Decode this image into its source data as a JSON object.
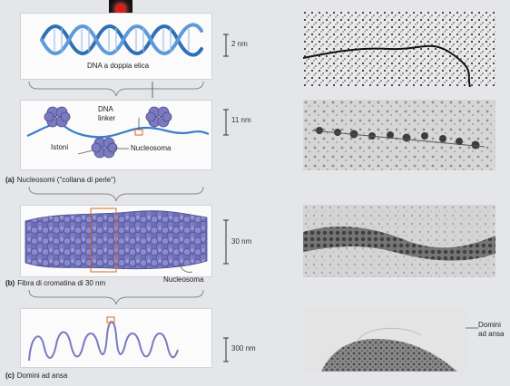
{
  "diagram": {
    "dna_label": "DNA a doppia elica",
    "dna_scale": "2 nm",
    "linker_label_1": "DNA",
    "linker_label_2": "linker",
    "histones_label": "Istoni",
    "nucleosome_label": "Nucleosoma",
    "nucleosome_scale": "11 nm",
    "panel_a_letter": "(a)",
    "panel_a_caption": "Nucleosomi (\"collana di perle\")",
    "fiber_scale": "30 nm",
    "fiber_nucleosome_label": "Nucleosoma",
    "panel_b_letter": "(b)",
    "panel_b_caption": "Fibra di cromatina di 30 nm",
    "loop_scale": "300 nm",
    "loop_domains_label_1": "Domini",
    "loop_domains_label_2": "ad ansa",
    "panel_c_letter": "(c)",
    "panel_c_caption": "Domini ad ansa"
  },
  "colors": {
    "dna_blue": "#3a7fc6",
    "histone_purple": "#7a7ac0",
    "marker_orange": "#d36a2a",
    "record_red": "#e01a1a"
  },
  "icons": {
    "record": "record-indicator-icon"
  }
}
